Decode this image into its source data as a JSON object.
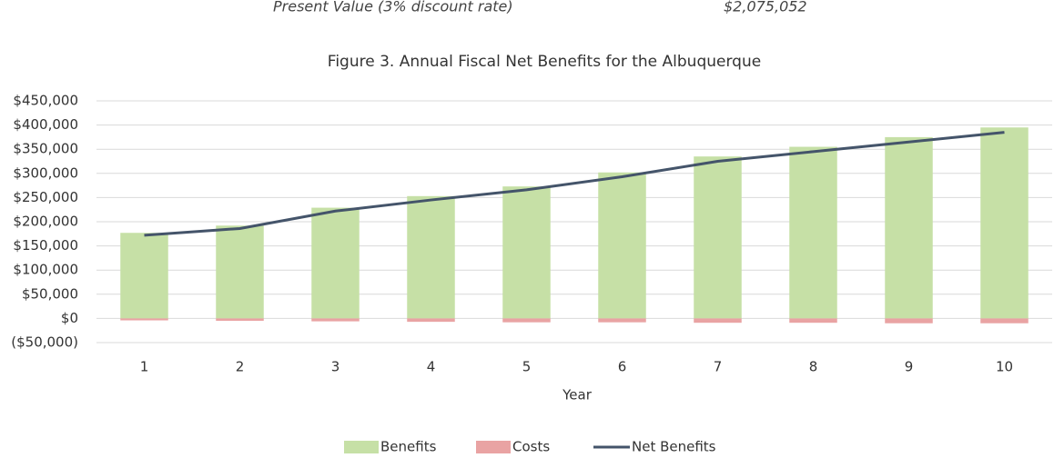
{
  "header_row": {
    "label": "Present Value (3% discount rate)",
    "value": "$2,075,052"
  },
  "chart_data": {
    "type": "bar",
    "title": "Figure 3. Annual Fiscal Net Benefits for the Albuquerque",
    "x_label": "Year",
    "categories": [
      "1",
      "2",
      "3",
      "4",
      "5",
      "6",
      "7",
      "8",
      "9",
      "10"
    ],
    "series": [
      {
        "name": "Benefits",
        "type": "bar",
        "color": "#c6e0a6",
        "values": [
          177000,
          192000,
          229000,
          253000,
          273000,
          302000,
          335000,
          355000,
          375000,
          395000
        ]
      },
      {
        "name": "Costs",
        "type": "bar",
        "color": "#e9a3a3",
        "values": [
          -4000,
          -5000,
          -6000,
          -7000,
          -8000,
          -8000,
          -9000,
          -9000,
          -10000,
          -10000
        ]
      },
      {
        "name": "Net Benefits",
        "type": "line",
        "color": "#44546a",
        "values": [
          172000,
          186000,
          222000,
          245000,
          266000,
          293000,
          325000,
          345000,
          365000,
          385000
        ]
      }
    ],
    "ylim": [
      -50000,
      450000
    ],
    "yticks": [
      {
        "value": -50000,
        "label": "($50,000)"
      },
      {
        "value": 0,
        "label": "$0"
      },
      {
        "value": 50000,
        "label": "$50,000"
      },
      {
        "value": 100000,
        "label": "$100,000"
      },
      {
        "value": 150000,
        "label": "$150,000"
      },
      {
        "value": 200000,
        "label": "$200,000"
      },
      {
        "value": 250000,
        "label": "$250,000"
      },
      {
        "value": 300000,
        "label": "$300,000"
      },
      {
        "value": 350000,
        "label": "$350,000"
      },
      {
        "value": 400000,
        "label": "$400,000"
      },
      {
        "value": 450000,
        "label": "$450,000"
      }
    ],
    "grid": true,
    "legend": "bottom"
  }
}
